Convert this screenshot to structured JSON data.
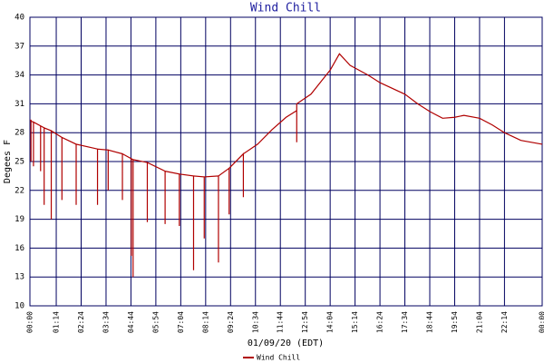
{
  "chart_data": {
    "type": "line",
    "title": "Wind Chill",
    "ylabel": "Degees F",
    "xlabel": "01/09/20 (EDT)",
    "series": [
      {
        "name": "Wind Chill",
        "color": "#b00000",
        "x": [
          0,
          3,
          3,
          3,
          10,
          10,
          10,
          30,
          30,
          30,
          40,
          40,
          40,
          60,
          60,
          60,
          90,
          90,
          90,
          130,
          130,
          130,
          190,
          190,
          190,
          220,
          220,
          220,
          260,
          260,
          260,
          285,
          285,
          285,
          290,
          290,
          290,
          330,
          330,
          330,
          380,
          380,
          380,
          420,
          420,
          420,
          460,
          460,
          460,
          490,
          490,
          490,
          530,
          530,
          530,
          560,
          560,
          560,
          600,
          600,
          600,
          640,
          680,
          720,
          750,
          750,
          750,
          790,
          820,
          844,
          870,
          900,
          950,
          984,
          1054,
          1090,
          1124,
          1160,
          1194,
          1220,
          1264,
          1300,
          1334,
          1380,
          1440
        ],
        "values": [
          29.3,
          29.3,
          25,
          29.2,
          29.1,
          24.5,
          29.1,
          28.7,
          24,
          28.7,
          28.5,
          20.5,
          28.5,
          28.2,
          19,
          28.2,
          27.5,
          21,
          27.5,
          26.8,
          20.5,
          26.8,
          26.3,
          20.5,
          26.3,
          26.2,
          22,
          26.2,
          25.8,
          21,
          25.8,
          25.3,
          15.2,
          25.3,
          25.2,
          13,
          25.2,
          24.9,
          18.7,
          24.9,
          24,
          18.5,
          24,
          23.7,
          18.3,
          23.7,
          23.5,
          13.7,
          23.5,
          23.4,
          17,
          23.4,
          23.5,
          14.5,
          23.5,
          24.3,
          19.5,
          24.3,
          25.8,
          21.3,
          25.8,
          26.8,
          28.3,
          29.6,
          30.3,
          27,
          31,
          32,
          33.4,
          34.5,
          36.2,
          35,
          34,
          33.2,
          32,
          31,
          30.2,
          29.5,
          29.6,
          29.8,
          29.5,
          28.8,
          28,
          27.2,
          26.8
        ]
      }
    ],
    "xlim": [
      0,
      1440
    ],
    "xticks": [
      {
        "value": 0,
        "label": "00:00"
      },
      {
        "value": 74,
        "label": "01:14"
      },
      {
        "value": 144,
        "label": "02:24"
      },
      {
        "value": 214,
        "label": "03:34"
      },
      {
        "value": 284,
        "label": "04:44"
      },
      {
        "value": 354,
        "label": "05:54"
      },
      {
        "value": 424,
        "label": "07:04"
      },
      {
        "value": 494,
        "label": "08:14"
      },
      {
        "value": 564,
        "label": "09:24"
      },
      {
        "value": 634,
        "label": "10:34"
      },
      {
        "value": 704,
        "label": "11:44"
      },
      {
        "value": 774,
        "label": "12:54"
      },
      {
        "value": 844,
        "label": "14:04"
      },
      {
        "value": 914,
        "label": "15:14"
      },
      {
        "value": 984,
        "label": "16:24"
      },
      {
        "value": 1054,
        "label": "17:34"
      },
      {
        "value": 1124,
        "label": "18:44"
      },
      {
        "value": 1194,
        "label": "19:54"
      },
      {
        "value": 1264,
        "label": "21:04"
      },
      {
        "value": 1334,
        "label": "22:14"
      },
      {
        "value": 1440,
        "label": "00:00"
      }
    ],
    "ylim": [
      10,
      40
    ],
    "yticks": [
      10,
      13,
      16,
      19,
      22,
      25,
      28,
      31,
      34,
      37,
      40
    ],
    "grid": true
  }
}
